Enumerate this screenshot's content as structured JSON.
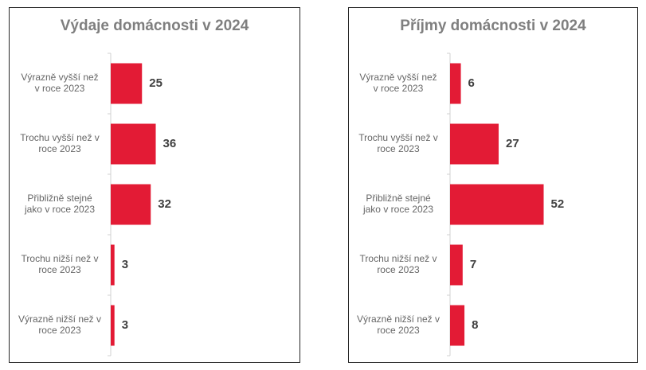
{
  "colors": {
    "bar": "#e31b35",
    "axis": "#d0d0d0"
  },
  "chart_data": [
    {
      "type": "bar",
      "orientation": "horizontal",
      "title": "Výdaje domácnosti  v 2024",
      "categories": [
        [
          "Výrazně vyšší než",
          "v roce 2023"
        ],
        [
          "Trochu vyšší než v",
          "roce 2023"
        ],
        [
          "Přibližně stejné",
          "jako v roce 2023"
        ],
        [
          "Trochu nižší než v",
          "roce 2023"
        ],
        [
          "Výrazně nižší než v",
          "roce 2023"
        ]
      ],
      "values": [
        25,
        36,
        32,
        3,
        3
      ],
      "value_labels": [
        "25",
        "36",
        "32",
        "3",
        "3"
      ],
      "xlim": [
        0,
        100
      ],
      "grid": false,
      "legend": "none"
    },
    {
      "type": "bar",
      "orientation": "horizontal",
      "title": "Příjmy domácnosti  v 2024",
      "categories": [
        [
          "Výrazně vyšší než",
          "v roce 2023"
        ],
        [
          "Trochu vyšší než v",
          "roce 2023"
        ],
        [
          "Přibližně stejné",
          "jako v roce 2023"
        ],
        [
          "Trochu nižší než v",
          "roce 2023"
        ],
        [
          "Výrazně nižší než v",
          "roce 2023"
        ]
      ],
      "values": [
        6,
        27,
        52,
        7,
        8
      ],
      "value_labels": [
        "6",
        "27",
        "52",
        "7",
        "8"
      ],
      "xlim": [
        0,
        100
      ],
      "grid": false,
      "legend": "none"
    }
  ]
}
